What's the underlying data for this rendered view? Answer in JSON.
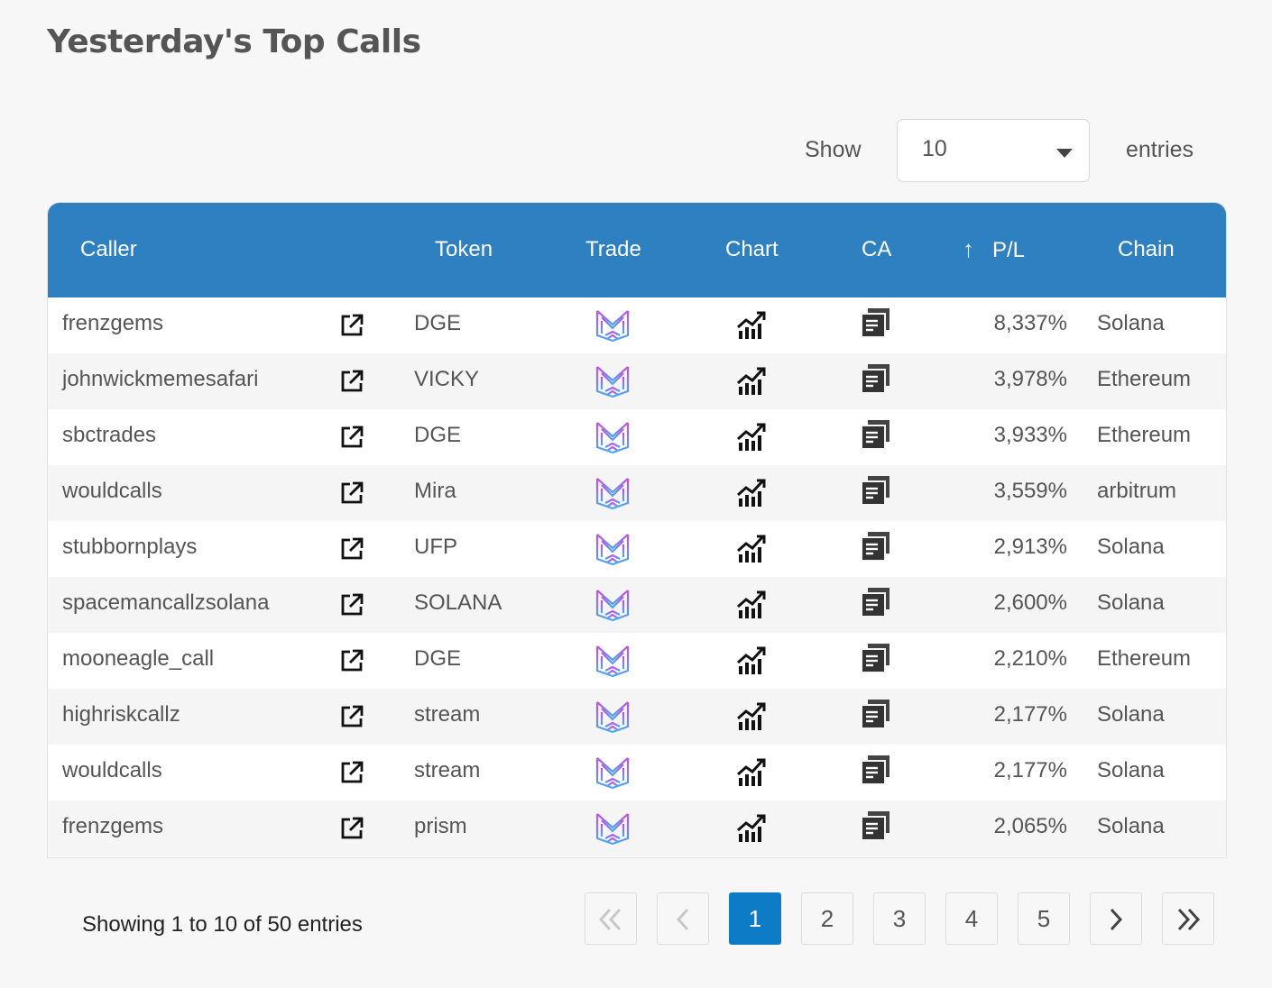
{
  "page": {
    "title": "Yesterday's Top Calls"
  },
  "length_control": {
    "show_label": "Show",
    "selected": "10",
    "entries_label": "entries"
  },
  "table": {
    "headers": {
      "caller": "Caller",
      "token": "Token",
      "trade": "Trade",
      "chart": "Chart",
      "ca": "CA",
      "pl_sort_icon": "↑",
      "pl": "P/L",
      "chain": "Chain"
    },
    "rows": [
      {
        "caller": "frenzgems",
        "token": "DGE",
        "pl": "8,337%",
        "chain": "Solana"
      },
      {
        "caller": "johnwickmemesafari",
        "token": "VICKY",
        "pl": "3,978%",
        "chain": "Ethereum"
      },
      {
        "caller": "sbctrades",
        "token": "DGE",
        "pl": "3,933%",
        "chain": "Ethereum"
      },
      {
        "caller": "wouldcalls",
        "token": "Mira",
        "pl": "3,559%",
        "chain": "arbitrum"
      },
      {
        "caller": "stubbornplays",
        "token": "UFP",
        "pl": "2,913%",
        "chain": "Solana"
      },
      {
        "caller": "spacemancallzsolana",
        "token": "SOLANA",
        "pl": "2,600%",
        "chain": "Solana"
      },
      {
        "caller": "mooneagle_call",
        "token": "DGE",
        "pl": "2,210%",
        "chain": "Ethereum"
      },
      {
        "caller": "highriskcallz",
        "token": "stream",
        "pl": "2,177%",
        "chain": "Solana"
      },
      {
        "caller": "wouldcalls",
        "token": "stream",
        "pl": "2,177%",
        "chain": "Solana"
      },
      {
        "caller": "frenzgems",
        "token": "prism",
        "pl": "2,065%",
        "chain": "Solana"
      }
    ]
  },
  "footer": {
    "info": "Showing 1 to 10 of 50 entries",
    "pages": [
      "1",
      "2",
      "3",
      "4",
      "5"
    ],
    "active_page": "1"
  },
  "colors": {
    "header_bg": "#2e80c1",
    "active_page": "#0d7bc5",
    "trade_icon_top": "#c84fe0",
    "trade_icon_bottom": "#4aa8f0"
  },
  "icons": {
    "link": "external-link-icon",
    "trade": "trade-logo-icon",
    "chart": "chart-growth-icon",
    "ca": "copy-contract-icon",
    "first": "double-chevron-left-icon",
    "prev": "chevron-left-icon",
    "next": "chevron-right-icon",
    "last": "double-chevron-right-icon"
  }
}
